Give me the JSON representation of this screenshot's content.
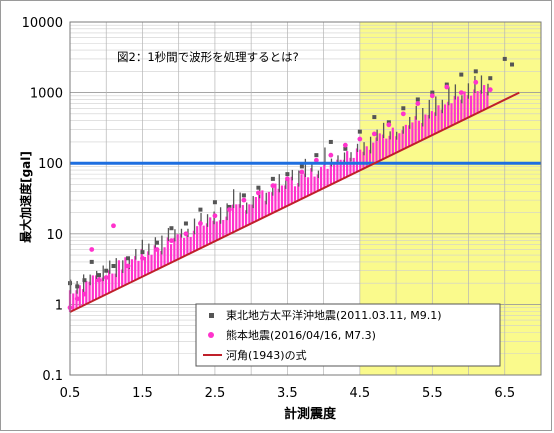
{
  "chart_data": {
    "type": "scatter",
    "title": "図2：1秒間で波形を処理するとは?",
    "xlabel": "計測震度",
    "ylabel": "最大加速度[gal]",
    "xlim": [
      0.5,
      7.0
    ],
    "ylim": [
      0.1,
      10000
    ],
    "yscale": "log",
    "x_ticks": [
      0.5,
      1.5,
      2.5,
      3.5,
      4.5,
      5.5,
      6.5
    ],
    "x_tick_labels": [
      "0.5",
      "1.5",
      "2.5",
      "3.5",
      "4.5",
      "5.5",
      "6.5"
    ],
    "y_ticks": [
      0.1,
      1,
      10,
      100,
      1000,
      10000
    ],
    "y_tick_labels": [
      "0.1",
      "1",
      "10",
      "100",
      "1000",
      "10000"
    ],
    "grid": true,
    "highlight_region": {
      "x_from": 4.5,
      "x_to": 7.0,
      "color": "#fafa8c"
    },
    "reference_line": {
      "y": 100,
      "color": "#1e6fe0"
    },
    "legend": {
      "placement": "bottom-right",
      "entries": [
        {
          "label": "東北地方太平洋沖地震(2011.03.11, M9.1)",
          "marker": "square",
          "color": "#555555"
        },
        {
          "label": "熊本地震(2016/04/16, M7.3)",
          "marker": "circle",
          "color": "#ff33cc"
        },
        {
          "label": "河角(1943)の式",
          "marker": "line",
          "color": "#c0202a"
        }
      ]
    },
    "series": [
      {
        "name": "東北地方太平洋沖地震(2011.03.11, M9.1)",
        "color": "#555555",
        "x": [
          0.5,
          0.6,
          0.7,
          0.8,
          0.9,
          1.0,
          1.1,
          1.3,
          1.5,
          1.7,
          1.9,
          2.1,
          2.3,
          2.5,
          2.7,
          2.9,
          3.1,
          3.3,
          3.5,
          3.7,
          3.9,
          4.1,
          4.3,
          4.5,
          4.7,
          4.9,
          5.1,
          5.3,
          5.5,
          5.7,
          5.9,
          6.1,
          6.3,
          6.5,
          6.6
        ],
        "y": [
          2.0,
          1.8,
          2.2,
          4.0,
          2.6,
          3.0,
          3.5,
          4.5,
          5.5,
          7.5,
          12,
          14,
          22,
          28,
          24,
          35,
          45,
          60,
          70,
          90,
          130,
          200,
          160,
          280,
          450,
          380,
          600,
          800,
          1000,
          1300,
          1800,
          2000,
          1600,
          3000,
          2500
        ]
      },
      {
        "name": "熊本地震(2016/04/16, M7.3)",
        "color": "#ff33cc",
        "x": [
          0.5,
          0.6,
          0.7,
          0.8,
          0.9,
          1.0,
          1.1,
          1.3,
          1.5,
          1.7,
          1.9,
          2.1,
          2.3,
          2.5,
          2.7,
          2.9,
          3.1,
          3.3,
          3.5,
          3.7,
          3.9,
          4.1,
          4.3,
          4.5,
          4.7,
          4.9,
          5.1,
          5.3,
          5.5,
          5.7,
          5.9,
          6.1,
          6.3
        ],
        "y": [
          0.9,
          1.2,
          1.4,
          6.0,
          2.2,
          2.4,
          13,
          3.5,
          4.5,
          6.0,
          8.0,
          10,
          14,
          18,
          22,
          30,
          38,
          48,
          60,
          75,
          110,
          130,
          180,
          220,
          260,
          350,
          500,
          700,
          900,
          1200,
          1000,
          1400,
          1100
        ]
      },
      {
        "name": "河角(1943)の式",
        "color": "#c0202a",
        "type": "line",
        "x": [
          0.5,
          6.7
        ],
        "y": [
          0.78,
          1000
        ]
      }
    ]
  }
}
